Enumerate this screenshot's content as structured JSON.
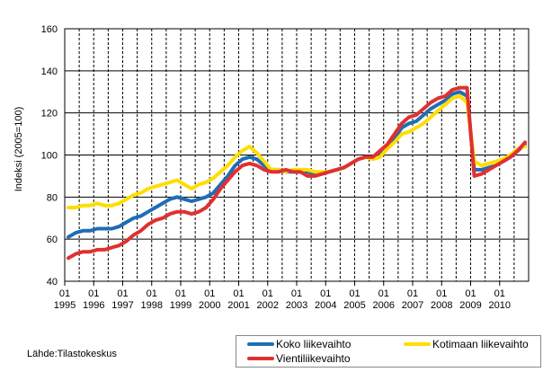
{
  "chart_data": {
    "type": "line",
    "title": "",
    "xlabel": "",
    "ylabel": "Indeksi (2005=100)",
    "ylim": [
      40,
      160
    ],
    "yticks": [
      40,
      60,
      80,
      100,
      120,
      140,
      160
    ],
    "grid": true,
    "legend_position": "bottom-right",
    "x_tick_month": "01",
    "x_tick_years": [
      "1995",
      "1996",
      "1997",
      "1998",
      "1999",
      "2000",
      "2001",
      "2002",
      "2003",
      "2004",
      "2005",
      "2006",
      "2007",
      "2008",
      "2009",
      "2010"
    ],
    "x_start": "1995-01",
    "x_step": "quarter",
    "series": [
      {
        "name": "Koko liikevaihto",
        "color": "#1f6db5",
        "values": [
          61,
          63,
          64,
          64,
          65,
          65,
          65,
          66,
          68,
          70,
          71,
          73,
          75,
          77,
          79,
          80,
          79,
          78,
          79,
          80,
          82,
          86,
          90,
          95,
          98,
          99,
          98,
          95,
          93,
          93,
          92,
          92,
          92,
          92,
          91,
          91,
          92,
          93,
          94,
          96,
          98,
          99,
          99,
          101,
          104,
          108,
          113,
          115,
          116,
          119,
          122,
          124,
          126,
          129,
          130,
          128,
          93,
          93,
          94,
          95,
          97,
          99,
          102,
          105
        ]
      },
      {
        "name": "Kotimaan liikevaihto",
        "color": "#ffdd00",
        "values": [
          75,
          75,
          76,
          76,
          77,
          76,
          76,
          77,
          79,
          81,
          82,
          84,
          85,
          86,
          87,
          88,
          86,
          84,
          86,
          87,
          89,
          92,
          95,
          99,
          102,
          104,
          101,
          97,
          93,
          93,
          92,
          93,
          93,
          93,
          92,
          92,
          92,
          93,
          94,
          96,
          98,
          99,
          98,
          99,
          103,
          106,
          110,
          111,
          113,
          115,
          118,
          121,
          124,
          127,
          128,
          125,
          97,
          95,
          96,
          97,
          98,
          100,
          103,
          104
        ]
      },
      {
        "name": "Vientiliikevaihto",
        "color": "#e03030",
        "values": [
          51,
          53,
          54,
          54,
          55,
          55,
          56,
          57,
          59,
          62,
          64,
          67,
          69,
          70,
          72,
          73,
          73,
          72,
          73,
          75,
          79,
          84,
          88,
          92,
          95,
          96,
          95,
          93,
          92,
          92,
          93,
          92,
          92,
          90,
          90,
          91,
          92,
          93,
          94,
          96,
          98,
          99,
          99,
          102,
          105,
          110,
          115,
          118,
          119,
          122,
          125,
          127,
          128,
          131,
          132,
          132,
          90,
          91,
          93,
          95,
          97,
          99,
          102,
          106
        ]
      }
    ]
  },
  "source": "Lähde:Tilastokeskus"
}
